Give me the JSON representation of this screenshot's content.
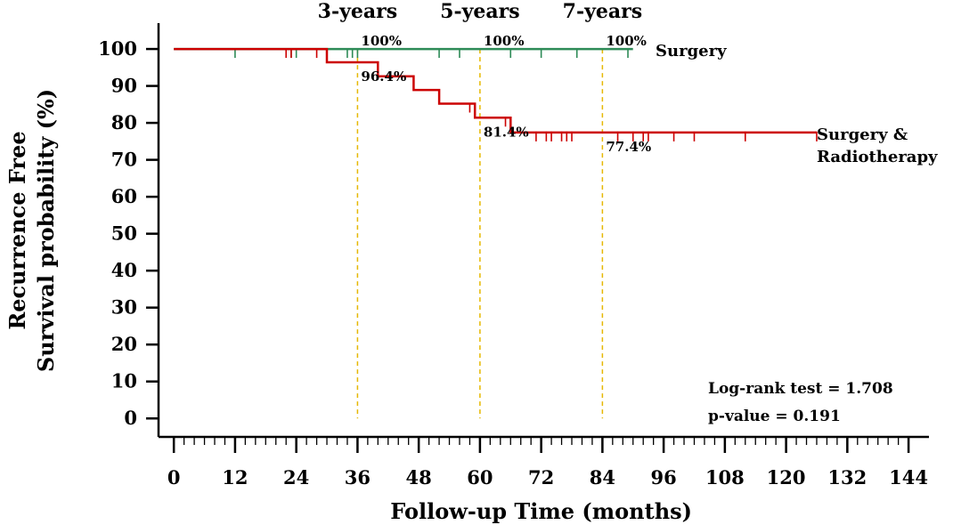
{
  "chart_data": {
    "type": "line",
    "xlabel": "Follow-up Time (months)",
    "ylabel_lines": [
      "Recurrence Free",
      "Survival probability (%)"
    ],
    "xlim": [
      -3,
      148
    ],
    "ylim": [
      -5,
      107
    ],
    "x_ticks": [
      0,
      12,
      24,
      36,
      48,
      60,
      72,
      84,
      96,
      108,
      120,
      132,
      144
    ],
    "y_ticks": [
      0,
      10,
      20,
      30,
      40,
      50,
      60,
      70,
      80,
      90,
      100
    ],
    "milestones": [
      {
        "x": 36,
        "label": "3-years"
      },
      {
        "x": 60,
        "label": "5-years"
      },
      {
        "x": 84,
        "label": "7-years"
      }
    ],
    "series": [
      {
        "name": "Surgery",
        "color": "#2e8b57",
        "steps": [
          [
            0,
            100
          ],
          [
            90,
            100
          ]
        ],
        "censored": [
          12,
          23,
          24,
          34,
          35,
          36,
          52,
          56,
          66,
          72,
          79,
          89
        ],
        "annotations": [
          {
            "x": 36,
            "text": "100%"
          },
          {
            "x": 60,
            "text": "100%"
          },
          {
            "x": 84,
            "text": "100%"
          }
        ]
      },
      {
        "name": "Surgery & Radiotherapy",
        "name_lines": [
          "Surgery &",
          "Radiotherapy"
        ],
        "color": "#cc0000",
        "steps": [
          [
            0,
            100
          ],
          [
            30,
            100
          ],
          [
            30,
            96.4
          ],
          [
            40,
            96.4
          ],
          [
            40,
            92.6
          ],
          [
            47,
            92.6
          ],
          [
            47,
            88.9
          ],
          [
            52,
            88.9
          ],
          [
            52,
            85.2
          ],
          [
            59,
            85.2
          ],
          [
            59,
            81.4
          ],
          [
            66,
            81.4
          ],
          [
            66,
            77.4
          ],
          [
            126,
            77.4
          ]
        ],
        "censored": [
          22,
          23,
          28,
          58,
          65,
          71,
          73,
          74,
          76,
          77,
          78,
          87,
          90,
          92,
          93,
          98,
          102,
          112,
          126
        ],
        "annotations": [
          {
            "x": 36,
            "text": "96.4%"
          },
          {
            "x": 60,
            "text": "81.4%"
          },
          {
            "x": 84,
            "text": "77.4%"
          }
        ]
      }
    ],
    "stats": [
      "Log-rank test = 1.708",
      "p-value = 0.191"
    ],
    "grid": false,
    "minor_x_step": 2
  }
}
